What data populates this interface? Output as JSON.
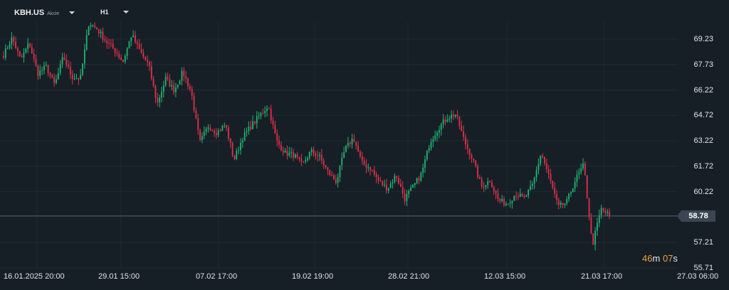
{
  "instrument": {
    "ticker": "KBH.US",
    "kind": "Akcie"
  },
  "timeframe": "H1",
  "countdown": {
    "minutes": "46",
    "minutes_unit": "m",
    "seconds": "07",
    "seconds_unit": "s"
  },
  "current_price": "58.78",
  "colors": {
    "background": "#161f26",
    "up": "#22b573",
    "down": "#e0324a",
    "grid": "#1f2a33",
    "price_line": "#5b6670"
  },
  "chart_data": {
    "type": "candlestick",
    "title": "",
    "xlabel": "",
    "ylabel": "",
    "ylim": [
      55.71,
      70.6
    ],
    "y_ticks": [
      "69.23",
      "67.73",
      "66.22",
      "64.72",
      "63.22",
      "61.72",
      "60.22",
      "58.78",
      "57.21",
      "55.71"
    ],
    "x_ticks": [
      "16.01.2025  20:00",
      "29.01  15:00",
      "07.02  17:00",
      "19.02  19:00",
      "28.02  21:00",
      "12.03  15:00",
      "21.03  17:00",
      "27.03  06:00"
    ],
    "current_price": 58.78,
    "close_path": [
      68.3,
      69.3,
      68.0,
      69.0,
      67.2,
      67.6,
      66.5,
      68.2,
      67.0,
      66.9,
      70.2,
      69.8,
      69.1,
      68.6,
      67.9,
      69.5,
      68.5,
      67.7,
      65.4,
      66.9,
      66.2,
      67.3,
      66.1,
      63.1,
      64.1,
      63.7,
      64.2,
      62.1,
      63.4,
      64.1,
      64.7,
      65.3,
      63.2,
      62.5,
      62.4,
      61.8,
      62.6,
      62.3,
      61.4,
      60.8,
      62.7,
      63.4,
      61.9,
      61.6,
      60.8,
      60.4,
      61.2,
      59.8,
      60.5,
      61.3,
      63.2,
      64.0,
      64.6,
      64.8,
      63.2,
      62.1,
      60.5,
      60.9,
      59.7,
      59.5,
      60.1,
      59.8,
      60.6,
      62.5,
      61.0,
      59.3,
      59.6,
      60.9,
      61.8,
      57.0,
      59.2,
      58.8
    ]
  }
}
